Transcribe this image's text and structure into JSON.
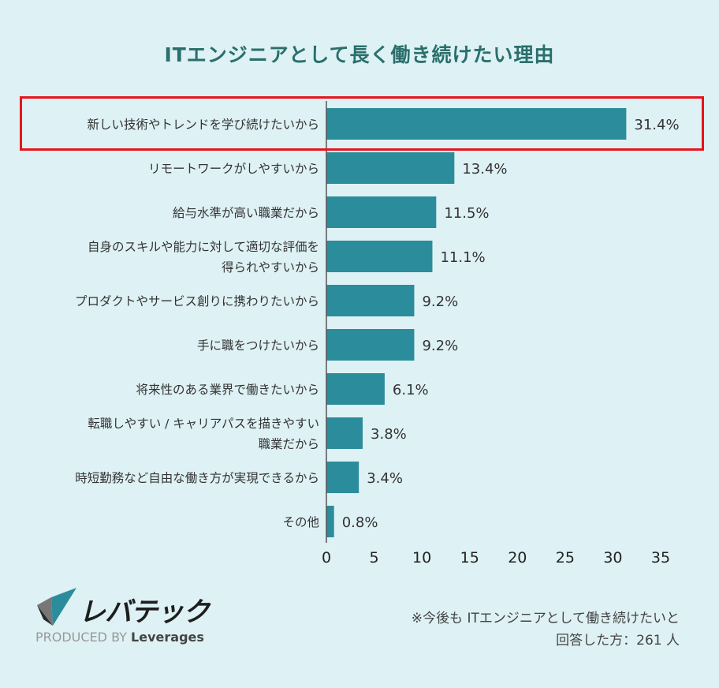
{
  "chart_data": {
    "type": "bar",
    "orientation": "horizontal",
    "title": "ITエンジニアとして長く働き続けたい理由",
    "categories": [
      [
        "新しい技術やトレンドを学び続けたいから"
      ],
      [
        "リモートワークがしやすいから"
      ],
      [
        "給与水準が高い職業だから"
      ],
      [
        "自身のスキルや能力に対して適切な評価を",
        "得られやすいから"
      ],
      [
        "プロダクトやサービス創りに携わりたいから"
      ],
      [
        "手に職をつけたいから"
      ],
      [
        "将来性のある業界で働きたいから"
      ],
      [
        "転職しやすい / キャリアパスを描きやすい",
        "職業だから"
      ],
      [
        "時短勤務など自由な働き方が実現できるから"
      ],
      [
        "その他"
      ]
    ],
    "values": [
      31.4,
      13.4,
      11.5,
      11.1,
      9.2,
      9.2,
      6.1,
      3.8,
      3.4,
      0.8
    ],
    "value_labels": [
      "31.4%",
      "13.4%",
      "11.5%",
      "11.1%",
      "9.2%",
      "9.2%",
      "6.1%",
      "3.8%",
      "3.4%",
      "0.8%"
    ],
    "xlim": [
      0,
      35
    ],
    "xticks": [
      "0",
      "5",
      "10",
      "15",
      "20",
      "25",
      "30",
      "35"
    ],
    "highlighted_index": 0,
    "grid": false,
    "colors": {
      "bar": "#2b8d9b",
      "highlight_box": "#e8141b",
      "title": "#2a6f6c",
      "background": "#def1f5"
    }
  },
  "logo": {
    "name": "レバテック",
    "produced_by": "PRODUCED BY",
    "brand": "Leverages"
  },
  "note": {
    "line1": "※今後も ITエンジニアとして働き続けたいと",
    "line2": "回答した方：261 人"
  }
}
